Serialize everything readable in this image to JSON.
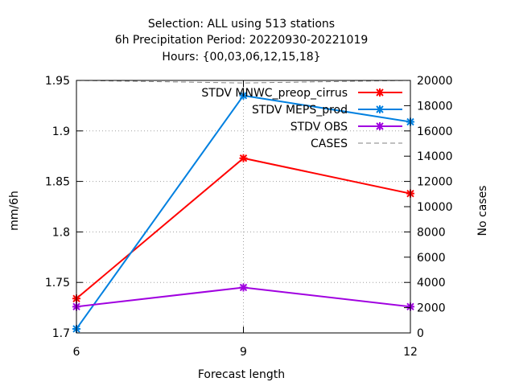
{
  "chart_data": {
    "type": "line",
    "title_lines": [
      "Selection: ALL using   513 stations",
      "6h Precipitation    Period: 20220930-20221019",
      "Hours: {00,03,06,12,15,18}"
    ],
    "xlabel": "Forecast length",
    "ylabel": "mm/6h",
    "y2label": "No cases",
    "x": [
      6,
      9,
      12
    ],
    "xticks": [
      "6",
      "9",
      "12"
    ],
    "xlim": [
      6,
      12
    ],
    "ylim": [
      1.7,
      1.95
    ],
    "yticks": [
      "1.7",
      "1.75",
      "1.8",
      "1.85",
      "1.9",
      "1.95"
    ],
    "y2lim": [
      0,
      20000
    ],
    "y2ticks": [
      "0",
      "2000",
      "4000",
      "6000",
      "8000",
      "10000",
      "12000",
      "14000",
      "16000",
      "18000",
      "20000"
    ],
    "grid": true,
    "legend_position": "top-right",
    "series": [
      {
        "name": "STDV MNWC_preop_cirrus",
        "values": [
          1.734,
          1.873,
          1.838
        ],
        "color": "#ff0000",
        "axis": "y1",
        "style": "solid"
      },
      {
        "name": "STDV MEPS_prod",
        "values": [
          1.704,
          1.935,
          1.909
        ],
        "color": "#0080e0",
        "axis": "y1",
        "style": "solid"
      },
      {
        "name": "STDV OBS",
        "values": [
          1.726,
          1.745,
          1.726
        ],
        "color": "#a000e0",
        "axis": "y1",
        "style": "solid"
      },
      {
        "name": "CASES",
        "values": [
          20000,
          19800,
          20000
        ],
        "color": "#808080",
        "axis": "y2",
        "style": "dashed"
      }
    ]
  }
}
